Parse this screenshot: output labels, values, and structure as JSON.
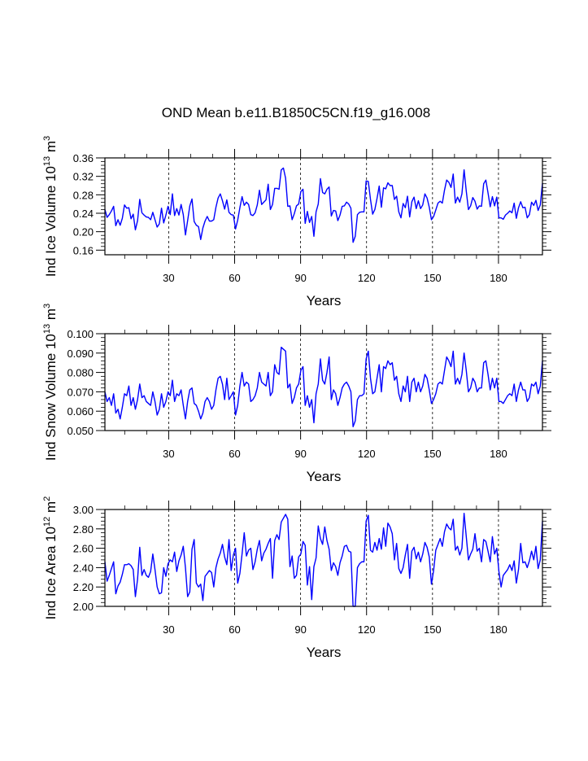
{
  "title": "OND Mean b.e11.B1850C5CN.f19_g16.008",
  "colors": {
    "line": "#0000ff",
    "axis": "#000000",
    "grid": "#000000"
  },
  "chart_data": [
    {
      "type": "line",
      "ylabel_base": "Ind Ice Volume 10",
      "ylabel_exp": "13",
      "ylabel_unit": " m",
      "ylabel_unit_exp": "3",
      "xlabel": "Years",
      "xlim": [
        1,
        200
      ],
      "ylim": [
        0.15,
        0.36
      ],
      "xticks": [
        30,
        60,
        90,
        120,
        150,
        180
      ],
      "xtick_labels": [
        "30",
        "60",
        "90",
        "120",
        "150",
        "180"
      ],
      "yticks": [
        0.16,
        0.2,
        0.24,
        0.28,
        0.32,
        0.36
      ],
      "ytick_labels": [
        "0.16",
        "0.20",
        "0.24",
        "0.28",
        "0.32",
        "0.36"
      ],
      "grid_x": [
        30,
        60,
        90,
        120,
        150,
        180
      ],
      "series": [
        {
          "name": "Ind Ice Volume",
          "values": [
            0.248,
            0.231,
            0.237,
            0.245,
            0.255,
            0.213,
            0.226,
            0.214,
            0.229,
            0.258,
            0.251,
            0.252,
            0.228,
            0.238,
            0.204,
            0.224,
            0.27,
            0.241,
            0.236,
            0.232,
            0.231,
            0.226,
            0.242,
            0.226,
            0.21,
            0.217,
            0.251,
            0.219,
            0.236,
            0.255,
            0.237,
            0.282,
            0.235,
            0.25,
            0.236,
            0.259,
            0.237,
            0.193,
            0.224,
            0.256,
            0.271,
            0.222,
            0.214,
            0.211,
            0.183,
            0.208,
            0.223,
            0.233,
            0.223,
            0.223,
            0.226,
            0.253,
            0.273,
            0.282,
            0.267,
            0.249,
            0.269,
            0.242,
            0.237,
            0.236,
            0.206,
            0.225,
            0.252,
            0.276,
            0.257,
            0.264,
            0.259,
            0.237,
            0.235,
            0.241,
            0.258,
            0.29,
            0.259,
            0.264,
            0.269,
            0.303,
            0.248,
            0.259,
            0.294,
            0.294,
            0.292,
            0.334,
            0.338,
            0.316,
            0.255,
            0.256,
            0.226,
            0.239,
            0.256,
            0.26,
            0.287,
            0.292,
            0.218,
            0.244,
            0.22,
            0.233,
            0.19,
            0.243,
            0.26,
            0.315,
            0.285,
            0.282,
            0.292,
            0.297,
            0.234,
            0.246,
            0.245,
            0.224,
            0.236,
            0.255,
            0.256,
            0.264,
            0.26,
            0.251,
            0.177,
            0.19,
            0.237,
            0.242,
            0.243,
            0.243,
            0.31,
            0.309,
            0.27,
            0.238,
            0.248,
            0.272,
            0.299,
            0.253,
            0.295,
            0.293,
            0.306,
            0.3,
            0.3,
            0.27,
            0.277,
            0.243,
            0.23,
            0.261,
            0.252,
            0.277,
            0.232,
            0.265,
            0.275,
            0.25,
            0.267,
            0.25,
            0.258,
            0.282,
            0.273,
            0.253,
            0.226,
            0.233,
            0.247,
            0.262,
            0.266,
            0.262,
            0.29,
            0.312,
            0.307,
            0.296,
            0.325,
            0.262,
            0.275,
            0.264,
            0.282,
            0.334,
            0.288,
            0.248,
            0.256,
            0.274,
            0.266,
            0.249,
            0.256,
            0.255,
            0.304,
            0.312,
            0.284,
            0.254,
            0.276,
            0.256,
            0.275,
            0.23,
            0.23,
            0.227,
            0.236,
            0.24,
            0.245,
            0.241,
            0.262,
            0.229,
            0.252,
            0.265,
            0.252,
            0.253,
            0.23,
            0.237,
            0.264,
            0.257,
            0.268,
            0.246,
            0.258,
            0.305
          ]
        }
      ]
    },
    {
      "type": "line",
      "ylabel_base": "Ind Snow Volume 10",
      "ylabel_exp": "13",
      "ylabel_unit": " m",
      "ylabel_unit_exp": "3",
      "xlabel": "Years",
      "xlim": [
        1,
        200
      ],
      "ylim": [
        0.05,
        0.1
      ],
      "xticks": [
        30,
        60,
        90,
        120,
        150,
        180
      ],
      "xtick_labels": [
        "30",
        "60",
        "90",
        "120",
        "150",
        "180"
      ],
      "yticks": [
        0.05,
        0.06,
        0.07,
        0.08,
        0.09,
        0.1
      ],
      "ytick_labels": [
        "0.050",
        "0.060",
        "0.070",
        "0.080",
        "0.090",
        "0.100"
      ],
      "grid_x": [
        30,
        60,
        90,
        120,
        150,
        180
      ],
      "series": [
        {
          "name": "Ind Snow Volume",
          "values": [
            0.07,
            0.065,
            0.067,
            0.063,
            0.069,
            0.059,
            0.061,
            0.056,
            0.062,
            0.069,
            0.068,
            0.073,
            0.063,
            0.067,
            0.061,
            0.066,
            0.074,
            0.067,
            0.068,
            0.065,
            0.064,
            0.063,
            0.07,
            0.065,
            0.058,
            0.061,
            0.069,
            0.062,
            0.065,
            0.07,
            0.068,
            0.076,
            0.065,
            0.069,
            0.068,
            0.071,
            0.063,
            0.056,
            0.065,
            0.071,
            0.072,
            0.064,
            0.063,
            0.06,
            0.056,
            0.059,
            0.065,
            0.067,
            0.065,
            0.061,
            0.063,
            0.071,
            0.077,
            0.078,
            0.074,
            0.066,
            0.077,
            0.066,
            0.068,
            0.07,
            0.058,
            0.063,
            0.073,
            0.08,
            0.073,
            0.075,
            0.074,
            0.065,
            0.066,
            0.068,
            0.072,
            0.08,
            0.075,
            0.074,
            0.073,
            0.08,
            0.068,
            0.07,
            0.084,
            0.08,
            0.079,
            0.093,
            0.092,
            0.091,
            0.072,
            0.074,
            0.064,
            0.067,
            0.072,
            0.074,
            0.081,
            0.083,
            0.063,
            0.068,
            0.062,
            0.066,
            0.054,
            0.069,
            0.074,
            0.087,
            0.076,
            0.074,
            0.08,
            0.088,
            0.066,
            0.071,
            0.069,
            0.063,
            0.067,
            0.072,
            0.074,
            0.075,
            0.073,
            0.07,
            0.052,
            0.055,
            0.066,
            0.068,
            0.068,
            0.069,
            0.087,
            0.091,
            0.077,
            0.069,
            0.07,
            0.077,
            0.084,
            0.07,
            0.083,
            0.082,
            0.086,
            0.084,
            0.085,
            0.076,
            0.078,
            0.069,
            0.065,
            0.073,
            0.07,
            0.078,
            0.065,
            0.075,
            0.077,
            0.07,
            0.075,
            0.07,
            0.073,
            0.079,
            0.077,
            0.071,
            0.064,
            0.066,
            0.069,
            0.074,
            0.075,
            0.074,
            0.081,
            0.088,
            0.086,
            0.083,
            0.091,
            0.074,
            0.077,
            0.074,
            0.079,
            0.09,
            0.081,
            0.07,
            0.072,
            0.077,
            0.075,
            0.07,
            0.072,
            0.072,
            0.085,
            0.086,
            0.079,
            0.071,
            0.077,
            0.072,
            0.077,
            0.065,
            0.065,
            0.064,
            0.066,
            0.068,
            0.069,
            0.068,
            0.074,
            0.065,
            0.071,
            0.075,
            0.071,
            0.071,
            0.065,
            0.067,
            0.074,
            0.073,
            0.075,
            0.069,
            0.073,
            0.086
          ]
        }
      ]
    },
    {
      "type": "line",
      "ylabel_base": "Ind Ice Area 10",
      "ylabel_exp": "12",
      "ylabel_unit": " m",
      "ylabel_unit_exp": "2",
      "xlabel": "Years",
      "xlim": [
        1,
        200
      ],
      "ylim": [
        2.0,
        3.0
      ],
      "xticks": [
        30,
        60,
        90,
        120,
        150,
        180
      ],
      "xtick_labels": [
        "30",
        "60",
        "90",
        "120",
        "150",
        "180"
      ],
      "yticks": [
        2.0,
        2.2,
        2.4,
        2.6,
        2.8,
        3.0
      ],
      "ytick_labels": [
        "2.00",
        "2.20",
        "2.40",
        "2.60",
        "2.80",
        "3.00"
      ],
      "grid_x": [
        30,
        60,
        90,
        120,
        150,
        180
      ],
      "series": [
        {
          "name": "Ind Ice Area",
          "values": [
            2.46,
            2.26,
            2.32,
            2.39,
            2.46,
            2.13,
            2.21,
            2.25,
            2.33,
            2.43,
            2.43,
            2.44,
            2.42,
            2.38,
            2.1,
            2.28,
            2.61,
            2.32,
            2.38,
            2.32,
            2.3,
            2.36,
            2.54,
            2.38,
            2.2,
            2.13,
            2.14,
            2.4,
            2.31,
            2.44,
            2.48,
            2.46,
            2.56,
            2.36,
            2.47,
            2.53,
            2.62,
            2.4,
            2.1,
            2.15,
            2.59,
            2.69,
            2.24,
            2.2,
            2.23,
            2.06,
            2.31,
            2.34,
            2.37,
            2.35,
            2.2,
            2.4,
            2.49,
            2.55,
            2.64,
            2.51,
            2.43,
            2.69,
            2.37,
            2.53,
            2.6,
            2.24,
            2.34,
            2.54,
            2.76,
            2.52,
            2.58,
            2.6,
            2.38,
            2.46,
            2.59,
            2.68,
            2.47,
            2.55,
            2.59,
            2.65,
            2.7,
            2.29,
            2.68,
            2.74,
            2.69,
            2.87,
            2.91,
            2.95,
            2.9,
            2.41,
            2.52,
            2.29,
            2.32,
            2.51,
            2.54,
            2.67,
            2.63,
            2.22,
            2.41,
            2.07,
            2.41,
            2.5,
            2.83,
            2.7,
            2.64,
            2.82,
            2.68,
            2.59,
            2.37,
            2.45,
            2.41,
            2.32,
            2.45,
            2.52,
            2.62,
            2.63,
            2.57,
            2.56,
            2.0,
            2.0,
            2.4,
            2.44,
            2.46,
            2.46,
            2.88,
            2.94,
            2.58,
            2.56,
            2.66,
            2.58,
            2.7,
            2.59,
            2.81,
            2.62,
            2.86,
            2.82,
            2.75,
            2.48,
            2.65,
            2.39,
            2.34,
            2.4,
            2.53,
            2.64,
            2.29,
            2.57,
            2.61,
            2.49,
            2.56,
            2.46,
            2.54,
            2.66,
            2.61,
            2.51,
            2.23,
            2.37,
            2.58,
            2.64,
            2.7,
            2.62,
            2.77,
            2.85,
            2.81,
            2.79,
            2.9,
            2.58,
            2.62,
            2.53,
            2.6,
            2.96,
            2.72,
            2.48,
            2.54,
            2.59,
            2.75,
            2.57,
            2.6,
            2.46,
            2.69,
            2.67,
            2.57,
            2.46,
            2.72,
            2.54,
            2.6,
            2.36,
            2.2,
            2.32,
            2.35,
            2.38,
            2.43,
            2.37,
            2.47,
            2.24,
            2.38,
            2.65,
            2.45,
            2.46,
            2.4,
            2.47,
            2.57,
            2.48,
            2.62,
            2.39,
            2.48,
            2.88
          ]
        }
      ]
    }
  ]
}
